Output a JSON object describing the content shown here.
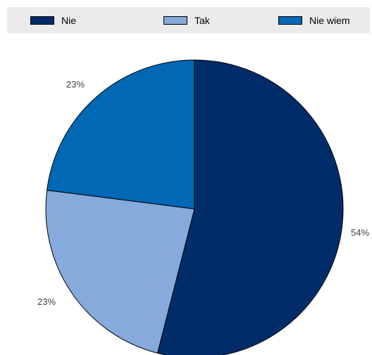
{
  "chart_data": {
    "type": "pie",
    "categories": [
      "Nie",
      "Tak",
      "Nie wiem"
    ],
    "values": [
      54,
      23,
      23
    ],
    "value_labels": [
      "54%",
      "23%",
      "23%"
    ],
    "colors": [
      "#002d6a",
      "#86aadc",
      "#0068b4"
    ],
    "legend_position": "top"
  }
}
